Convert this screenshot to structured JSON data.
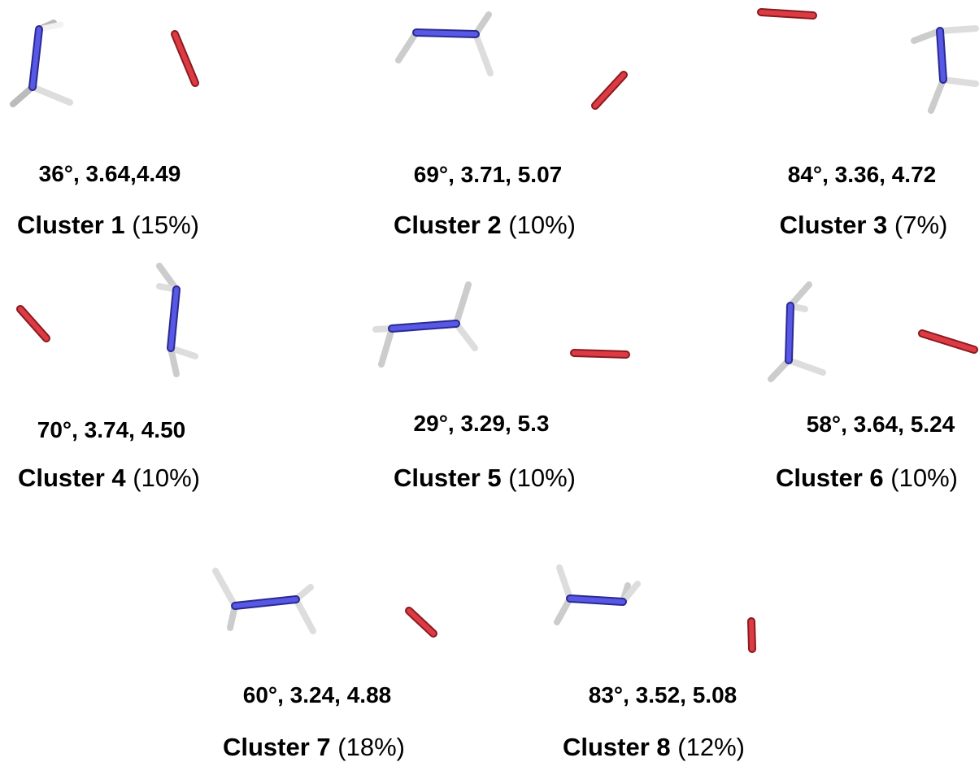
{
  "clusters": [
    {
      "name": "Cluster 1",
      "percent": "(15%)",
      "params": "36°, 3.64,4.49"
    },
    {
      "name": "Cluster 2",
      "percent": "(10%)",
      "params": "69°, 3.71, 5.07"
    },
    {
      "name": "Cluster 3",
      "percent": "(7%)",
      "params": "84°, 3.36, 4.72"
    },
    {
      "name": "Cluster 4",
      "percent": "(10%)",
      "params": "70°, 3.74, 4.50"
    },
    {
      "name": "Cluster 5",
      "percent": "(10%)",
      "params": "29°, 3.29, 5.3"
    },
    {
      "name": "Cluster 6",
      "percent": "(10%)",
      "params": "58°, 3.64, 5.24"
    },
    {
      "name": "Cluster 7",
      "percent": "(18%)",
      "params": "60°, 3.24, 4.88"
    },
    {
      "name": "Cluster 8",
      "percent": "(12%)",
      "params": "83°, 3.52, 5.08"
    }
  ],
  "colors": {
    "nitrogen": "#4f4fe0",
    "hydrogen": "#e8e8e8",
    "oxygen": "#d8333c"
  }
}
